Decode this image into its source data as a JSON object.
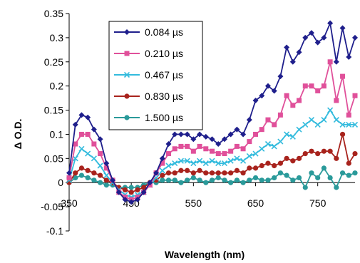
{
  "chart_data": {
    "type": "line",
    "xlabel": "Wavelength (nm)",
    "ylabel": "Δ O.D.",
    "xlim": [
      350,
      810
    ],
    "ylim": [
      -0.1,
      0.35
    ],
    "yticks": [
      0.35,
      0.3,
      0.25,
      0.2,
      0.15,
      0.1,
      0.05,
      0,
      -0.05,
      -0.1
    ],
    "ytick_labels": [
      "0.35",
      "0.3",
      "0.25",
      "0.2",
      "0.15",
      "0.1",
      "0.05",
      "0",
      "-0.05",
      "-0.1"
    ],
    "xticks": [
      350,
      450,
      550,
      650,
      750
    ],
    "xtick_labels": [
      "350",
      "450",
      "550",
      "650",
      "750"
    ],
    "grid": false,
    "legend_position": "top-left",
    "x": [
      350,
      360,
      370,
      380,
      390,
      400,
      410,
      420,
      430,
      440,
      450,
      460,
      470,
      480,
      490,
      500,
      510,
      520,
      530,
      540,
      550,
      560,
      570,
      580,
      590,
      600,
      610,
      620,
      630,
      640,
      650,
      660,
      670,
      680,
      690,
      700,
      710,
      720,
      730,
      740,
      750,
      760,
      770,
      780,
      790,
      800,
      810
    ],
    "series": [
      {
        "name": "0.084 µs",
        "color": "#1f1f8c",
        "marker": "diamond",
        "values": [
          0.02,
          0.12,
          0.14,
          0.135,
          0.11,
          0.09,
          0.04,
          0.005,
          -0.02,
          -0.035,
          -0.04,
          -0.035,
          -0.02,
          0.0,
          0.02,
          0.05,
          0.08,
          0.1,
          0.1,
          0.1,
          0.09,
          0.1,
          0.095,
          0.09,
          0.08,
          0.09,
          0.1,
          0.11,
          0.1,
          0.13,
          0.17,
          0.18,
          0.2,
          0.19,
          0.22,
          0.28,
          0.25,
          0.27,
          0.3,
          0.31,
          0.29,
          0.3,
          0.33,
          0.25,
          0.32,
          0.26,
          0.3
        ]
      },
      {
        "name": "0.210 µs",
        "color": "#e0509a",
        "marker": "square",
        "values": [
          0.01,
          0.08,
          0.1,
          0.1,
          0.08,
          0.06,
          0.03,
          0.005,
          -0.02,
          -0.03,
          -0.035,
          -0.03,
          -0.02,
          -0.005,
          0.02,
          0.04,
          0.06,
          0.07,
          0.075,
          0.075,
          0.065,
          0.075,
          0.07,
          0.065,
          0.06,
          0.06,
          0.065,
          0.075,
          0.07,
          0.085,
          0.1,
          0.11,
          0.13,
          0.12,
          0.14,
          0.18,
          0.16,
          0.17,
          0.2,
          0.2,
          0.19,
          0.2,
          0.25,
          0.17,
          0.22,
          0.14,
          0.18
        ]
      },
      {
        "name": "0.467 µs",
        "color": "#33bbdd",
        "marker": "x",
        "values": [
          0.005,
          0.05,
          0.07,
          0.06,
          0.05,
          0.035,
          0.015,
          0.0,
          -0.015,
          -0.025,
          -0.03,
          -0.025,
          -0.02,
          -0.005,
          0.01,
          0.025,
          0.035,
          0.04,
          0.045,
          0.045,
          0.04,
          0.045,
          0.04,
          0.045,
          0.04,
          0.04,
          0.045,
          0.05,
          0.045,
          0.055,
          0.06,
          0.07,
          0.08,
          0.075,
          0.085,
          0.1,
          0.095,
          0.11,
          0.12,
          0.13,
          0.12,
          0.13,
          0.15,
          0.13,
          0.12,
          0.12,
          0.12
        ]
      },
      {
        "name": "0.830 µs",
        "color": "#a8231d",
        "marker": "circle",
        "values": [
          0.0,
          0.02,
          0.03,
          0.025,
          0.02,
          0.015,
          0.005,
          0.0,
          -0.01,
          -0.015,
          -0.02,
          -0.015,
          -0.01,
          0.0,
          0.005,
          0.015,
          0.02,
          0.02,
          0.025,
          0.025,
          0.02,
          0.025,
          0.02,
          0.02,
          0.02,
          0.02,
          0.02,
          0.025,
          0.02,
          0.03,
          0.03,
          0.035,
          0.04,
          0.035,
          0.04,
          0.05,
          0.045,
          0.05,
          0.06,
          0.065,
          0.06,
          0.065,
          0.065,
          0.05,
          0.1,
          0.04,
          0.06
        ]
      },
      {
        "name": "1.500 µs",
        "color": "#2a9a9a",
        "marker": "circle",
        "values": [
          0.0,
          0.01,
          0.015,
          0.01,
          0.005,
          0.0,
          -0.005,
          -0.005,
          -0.01,
          -0.01,
          -0.01,
          -0.01,
          -0.005,
          0.0,
          0.0,
          0.005,
          0.005,
          0.005,
          0.0,
          0.005,
          0.01,
          0.005,
          0.0,
          0.005,
          0.01,
          0.005,
          0.0,
          0.005,
          0.0,
          0.005,
          0.01,
          0.005,
          0.005,
          0.01,
          0.02,
          0.015,
          0.005,
          0.01,
          -0.01,
          0.02,
          0.01,
          0.03,
          0.01,
          -0.01,
          0.02,
          0.015,
          0.02
        ]
      }
    ]
  }
}
